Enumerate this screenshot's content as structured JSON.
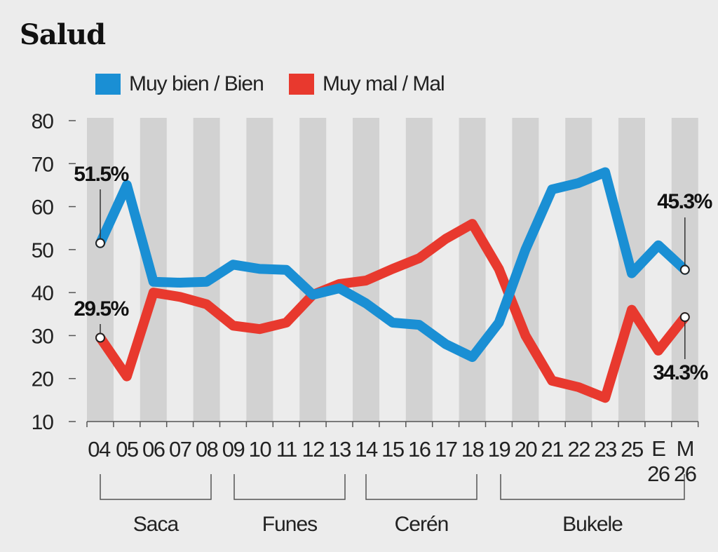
{
  "title": "Salud",
  "colors": {
    "series_good": "#1a8fd4",
    "series_bad": "#e8392e",
    "band": "#d2d2d2",
    "background": "#ececec",
    "axis": "#555555"
  },
  "legend": [
    {
      "label": "Muy bien / Bien",
      "color": "#1a8fd4"
    },
    {
      "label": "Muy mal / Mal",
      "color": "#e8392e"
    }
  ],
  "chart_data": {
    "type": "line",
    "title": "Salud",
    "xlabel": "",
    "ylabel": "",
    "ylim": [
      10,
      80
    ],
    "yticks": [
      "10",
      "20",
      "30",
      "40",
      "50",
      "60",
      "70",
      "80"
    ],
    "categories": [
      "04",
      "05",
      "06",
      "07",
      "08",
      "09",
      "10",
      "11",
      "12",
      "13",
      "14",
      "15",
      "16",
      "17",
      "18",
      "19",
      "20",
      "21",
      "22",
      "23",
      "25",
      "E 26",
      "M 26"
    ],
    "category_lines": [
      [
        "04"
      ],
      [
        "05"
      ],
      [
        "06"
      ],
      [
        "07"
      ],
      [
        "08"
      ],
      [
        "09"
      ],
      [
        "10"
      ],
      [
        "11"
      ],
      [
        "12"
      ],
      [
        "13"
      ],
      [
        "14"
      ],
      [
        "15"
      ],
      [
        "16"
      ],
      [
        "17"
      ],
      [
        "18"
      ],
      [
        "19"
      ],
      [
        "20"
      ],
      [
        "21"
      ],
      [
        "22"
      ],
      [
        "23"
      ],
      [
        "25"
      ],
      [
        "E",
        "26"
      ],
      [
        "M",
        "26"
      ]
    ],
    "series": [
      {
        "name": "Muy bien / Bien",
        "color": "#1a8fd4",
        "values": [
          51.5,
          65,
          42.5,
          42.3,
          42.5,
          46.5,
          45.5,
          45.3,
          39.5,
          41,
          37.5,
          33,
          32.5,
          28,
          25,
          33,
          50,
          64,
          65.5,
          68,
          44.5,
          51,
          45.3
        ]
      },
      {
        "name": "Muy mal / Mal",
        "color": "#e8392e",
        "values": [
          29.5,
          20.5,
          40,
          39,
          37.3,
          32.3,
          31.5,
          33,
          39.5,
          42,
          42.8,
          45.5,
          48,
          52.5,
          56,
          45.5,
          30,
          19.5,
          18,
          15.5,
          36,
          26.5,
          34.3
        ]
      }
    ],
    "annotations": [
      {
        "label": "51.5%",
        "series": 0,
        "index": 0
      },
      {
        "label": "29.5%",
        "series": 1,
        "index": 0
      },
      {
        "label": "45.3%",
        "series": 0,
        "index": 22
      },
      {
        "label": "34.3%",
        "series": 1,
        "index": 22
      }
    ],
    "groups": [
      {
        "label": "Saca",
        "from": 0,
        "to": 4
      },
      {
        "label": "Funes",
        "from": 5,
        "to": 9
      },
      {
        "label": "Cerén",
        "from": 10,
        "to": 14
      },
      {
        "label": "Bukele",
        "from": 15,
        "to": 22
      }
    ],
    "grid": false
  }
}
